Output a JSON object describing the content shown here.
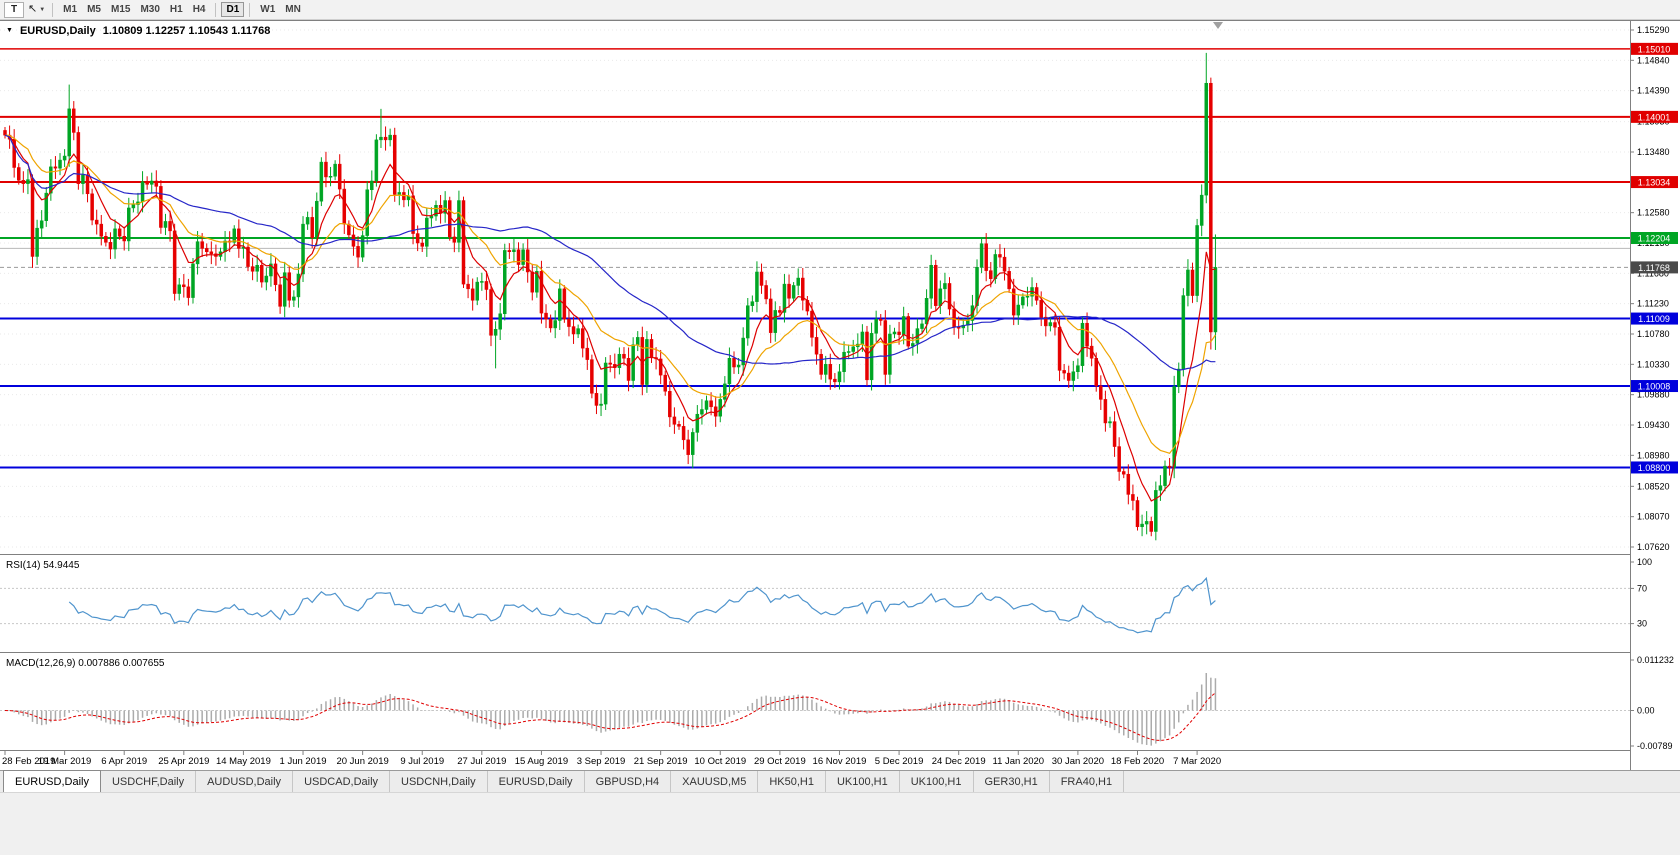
{
  "toolbar": {
    "icons": {
      "text_tool": "T",
      "cursor_tool": "↖",
      "caret": "▼",
      "chart_marker": "▼"
    },
    "timeframes": [
      "M1",
      "M5",
      "M15",
      "M30",
      "H1",
      "H4",
      "D1",
      "W1",
      "MN"
    ],
    "active": "D1"
  },
  "header": {
    "title": "EURUSD,Daily",
    "ohlc": "1.10809 1.12257 1.10543 1.11768"
  },
  "chart_data": {
    "type": "candlestick",
    "symbol": "EURUSD",
    "period": "Daily",
    "candle_up_color": "#00a524",
    "candle_down_color": "#e60000",
    "y_axis_ticks": [
      "1.15290",
      "1.14840",
      "1.14390",
      "1.13930",
      "1.13480",
      "1.13030",
      "1.12580",
      "1.12130",
      "1.11680",
      "1.11230",
      "1.10780",
      "1.10330",
      "1.09880",
      "1.09430",
      "1.08980",
      "1.08520",
      "1.08070",
      "1.07620"
    ],
    "y_top_value": 1.15364,
    "y_bottom_value": 1.07531,
    "x_labels": [
      "28 Feb 2019",
      "19 Mar 2019",
      "6 Apr 2019",
      "25 Apr 2019",
      "14 May 2019",
      "1 Jun 2019",
      "20 Jun 2019",
      "9 Jul 2019",
      "27 Jul 2019",
      "15 Aug 2019",
      "3 Sep 2019",
      "21 Sep 2019",
      "10 Oct 2019",
      "29 Oct 2019",
      "16 Nov 2019",
      "5 Dec 2019",
      "24 Dec 2019",
      "11 Jan 2020",
      "30 Jan 2020",
      "18 Feb 2020",
      "7 Mar 2020"
    ],
    "label_every": 13,
    "first_open": 1.138,
    "closes": [
      1.1373,
      1.1367,
      1.1325,
      1.1306,
      1.1301,
      1.1307,
      1.1193,
      1.1235,
      1.1246,
      1.1287,
      1.1326,
      1.1324,
      1.1336,
      1.1342,
      1.1412,
      1.1377,
      1.1301,
      1.1314,
      1.1286,
      1.1247,
      1.1241,
      1.1223,
      1.1214,
      1.1204,
      1.1234,
      1.1223,
      1.1216,
      1.1265,
      1.127,
      1.1274,
      1.1304,
      1.13,
      1.1305,
      1.1297,
      1.1236,
      1.1245,
      1.1231,
      1.1138,
      1.1151,
      1.1148,
      1.1132,
      1.1182,
      1.1215,
      1.1205,
      1.12,
      1.1197,
      1.1193,
      1.12,
      1.1216,
      1.1214,
      1.1234,
      1.1205,
      1.1207,
      1.1178,
      1.1171,
      1.118,
      1.1155,
      1.1164,
      1.1182,
      1.1151,
      1.1119,
      1.1169,
      1.1128,
      1.1133,
      1.1167,
      1.1241,
      1.1251,
      1.1221,
      1.1275,
      1.1333,
      1.1311,
      1.1312,
      1.133,
      1.1293,
      1.1241,
      1.1225,
      1.1208,
      1.1192,
      1.1224,
      1.1292,
      1.1305,
      1.1366,
      1.137,
      1.1366,
      1.1373,
      1.1285,
      1.1288,
      1.1277,
      1.1283,
      1.1227,
      1.1213,
      1.1208,
      1.125,
      1.1253,
      1.1269,
      1.1257,
      1.1276,
      1.1222,
      1.1214,
      1.1276,
      1.1152,
      1.1145,
      1.1128,
      1.1155,
      1.1156,
      1.1144,
      1.1076,
      1.1085,
      1.1108,
      1.1202,
      1.12,
      1.1203,
      1.1181,
      1.1203,
      1.117,
      1.114,
      1.1171,
      1.1109,
      1.11,
      1.1087,
      1.1098,
      1.1145,
      1.11,
      1.1089,
      1.1078,
      1.1086,
      1.1057,
      1.104,
      1.099,
      1.0972,
      1.0974,
      1.1035,
      1.1033,
      1.1028,
      1.1048,
      1.1042,
      1.1009,
      1.1062,
      1.1073,
      1.1003,
      1.107,
      1.1043,
      1.1041,
      1.1017,
      1.0993,
      1.0955,
      1.0944,
      1.0941,
      1.0921,
      1.0899,
      1.0932,
      1.0959,
      1.0966,
      1.0979,
      1.097,
      1.0956,
      1.0981,
      1.1004,
      1.1042,
      1.1029,
      1.1032,
      1.1072,
      1.112,
      1.1126,
      1.117,
      1.115,
      1.113,
      1.108,
      1.1113,
      1.111,
      1.1152,
      1.1131,
      1.115,
      1.1161,
      1.1128,
      1.1112,
      1.1073,
      1.1048,
      1.1018,
      1.1033,
      1.1011,
      1.1007,
      1.1022,
      1.1051,
      1.1052,
      1.1059,
      1.1063,
      1.1081,
      1.101,
      1.1079,
      1.11,
      1.1098,
      1.1018,
      1.1078,
      1.1081,
      1.1077,
      1.1104,
      1.106,
      1.1064,
      1.1086,
      1.1093,
      1.1131,
      1.118,
      1.112,
      1.1145,
      1.1153,
      1.1115,
      1.1088,
      1.1087,
      1.1091,
      1.1098,
      1.112,
      1.1177,
      1.1212,
      1.1172,
      1.116,
      1.1196,
      1.1192,
      1.1171,
      1.1145,
      1.1106,
      1.1121,
      1.1133,
      1.1134,
      1.1147,
      1.1128,
      1.1103,
      1.109,
      1.1095,
      1.1088,
      1.1024,
      1.102,
      1.1009,
      1.1022,
      1.1031,
      1.1094,
      1.106,
      1.1042,
      1.1001,
      1.0981,
      1.0946,
      1.0948,
      1.0911,
      1.0874,
      1.087,
      1.084,
      1.0831,
      1.0792,
      1.0796,
      1.08,
      1.0785,
      1.0846,
      1.0853,
      1.0882,
      1.088,
      1.1,
      1.1026,
      1.1135,
      1.1173,
      1.1135,
      1.1239,
      1.1284,
      1.145,
      1.1081,
      1.11768
    ],
    "wick_overrides": {
      "6": {
        "l": 1.1176
      },
      "14": {
        "h": 1.1448
      },
      "82": {
        "h": 1.1412
      },
      "106": {
        "l": 1.106
      },
      "107": {
        "l": 1.1027
      },
      "149": {
        "l": 1.0885
      },
      "150": {
        "l": 1.0879
      },
      "250": {
        "l": 1.0778
      },
      "262": {
        "h": 1.1495
      },
      "263": {
        "l": 1.1055
      },
      "264": {
        "h": 1.12257,
        "l": 1.10543
      }
    },
    "hlines": [
      {
        "label": "1.15010",
        "value": 1.1501,
        "color": "#e00000",
        "width": 1.5
      },
      {
        "label": "1.14001",
        "value": 1.14001,
        "color": "#e00000",
        "width": 2
      },
      {
        "label": "1.13034",
        "value": 1.13034,
        "color": "#e00000",
        "width": 2
      },
      {
        "label": "1.12204",
        "value": 1.12204,
        "color": "#00a524",
        "width": 2
      },
      {
        "label": "",
        "value": 1.1205,
        "color": "#b8b8b8",
        "width": 1
      },
      {
        "label": "1.11009",
        "value": 1.11009,
        "color": "#0000dc",
        "width": 2
      },
      {
        "label": "1.10008",
        "value": 1.10008,
        "color": "#0000dc",
        "width": 2
      },
      {
        "label": "1.08800",
        "value": 1.088,
        "color": "#0000dc",
        "width": 2
      }
    ],
    "current_price": {
      "label": "1.11768",
      "value": 1.11768,
      "line_color": "#9a9a9a",
      "box_color": "#4a4a4a"
    },
    "moving_averages": [
      {
        "type": "ema",
        "period": 8,
        "color": "#dd0000"
      },
      {
        "type": "ema",
        "period": 21,
        "color": "#efa400"
      },
      {
        "type": "sma",
        "period": 50,
        "color": "#2626c8"
      }
    ]
  },
  "rsi": {
    "label": "RSI(14) 54.9445",
    "line_color": "#4f94cd",
    "ticks": [
      {
        "label": "100",
        "value": 100
      },
      {
        "label": "70",
        "value": 70
      },
      {
        "label": "30",
        "value": 30
      }
    ],
    "levels": [
      70,
      30
    ]
  },
  "macd": {
    "label": "MACD(12,26,9) 0.007886 0.007655",
    "histogram_color": "#ababab",
    "signal_color": "#e00000",
    "max": 0.011232,
    "min": -0.00789,
    "ticks": [
      {
        "label": "0.011232",
        "value": 0.011232
      },
      {
        "label": "0.00",
        "value": 0
      },
      {
        "label": "-0.00789",
        "value": -0.00789
      }
    ]
  },
  "tabs": {
    "active_index": 0,
    "items": [
      "EURUSD,Daily",
      "USDCHF,Daily",
      "AUDUSD,Daily",
      "USDCAD,Daily",
      "USDCNH,Daily",
      "EURUSD,Daily",
      "GBPUSD,H4",
      "XAUUSD,M5",
      "HK50,H1",
      "UK100,H1",
      "UK100,H1",
      "GER30,H1",
      "FRA40,H1"
    ]
  }
}
